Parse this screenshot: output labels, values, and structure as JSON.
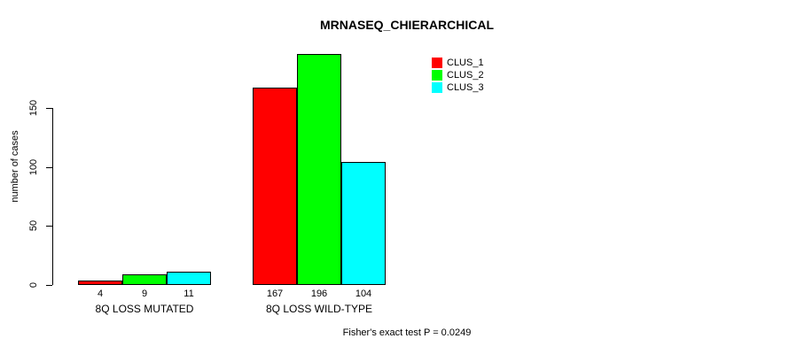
{
  "chart_data": {
    "type": "bar",
    "title": "MRNASEQ_CHIERARCHICAL",
    "ylabel": "number of cases",
    "xlabel": "",
    "categories": [
      "8Q LOSS MUTATED",
      "8Q LOSS WILD-TYPE"
    ],
    "series": [
      {
        "name": "CLUS_1",
        "color": "#FF0000",
        "values": [
          4,
          167
        ]
      },
      {
        "name": "CLUS_2",
        "color": "#00FF00",
        "values": [
          9,
          196
        ]
      },
      {
        "name": "CLUS_3",
        "color": "#00FFFF",
        "values": [
          11,
          104
        ]
      }
    ],
    "yticks": [
      0,
      50,
      100,
      150
    ],
    "ylim": [
      0,
      200
    ],
    "grid": false,
    "legend_position": "top-right",
    "bar_value_labels": true,
    "annotation": "Fisher's exact test P = 0.0249"
  },
  "colors": {
    "background": "#FFFFFF",
    "axis": "#000000",
    "text": "#000000",
    "bar_border": "#000000"
  }
}
